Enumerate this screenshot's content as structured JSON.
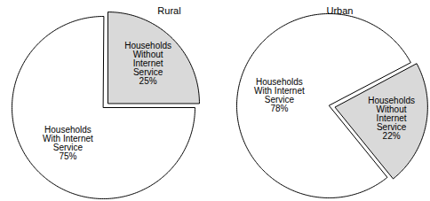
{
  "chart_data": [
    {
      "type": "pie",
      "title": "Rural",
      "categories": [
        "Households With Internet Service",
        "Households Without Internet Service"
      ],
      "values": [
        75,
        25
      ],
      "value_labels": [
        "75%",
        "25%"
      ],
      "colors": [
        "#ffffff",
        "#d9d9d9"
      ],
      "data_labels": true
    },
    {
      "type": "pie",
      "title": "Urban",
      "categories": [
        "Households With Internet Service",
        "Households Without Internet Service"
      ],
      "values": [
        78,
        22
      ],
      "value_labels": [
        "78%",
        "22%"
      ],
      "colors": [
        "#ffffff",
        "#d9d9d9"
      ],
      "data_labels": true
    }
  ]
}
